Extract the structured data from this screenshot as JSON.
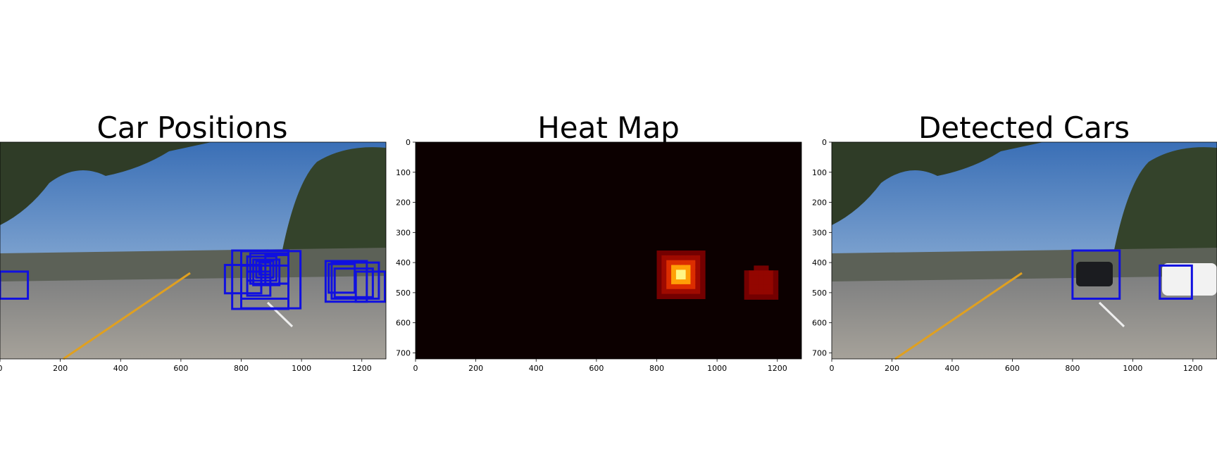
{
  "figure": {
    "panels": [
      {
        "id": "car-positions",
        "title": "Car Positions"
      },
      {
        "id": "heat-map",
        "title": "Heat Map"
      },
      {
        "id": "detected-cars",
        "title": "Detected Cars"
      }
    ]
  },
  "colors": {
    "box": "#1010e0",
    "heat_background": "#0c0000",
    "sky_top": "#3f73b8",
    "sky_bottom": "#9fc0df",
    "road": "#8d8d8b",
    "trees": "#31402a",
    "lane_line": "#e0a020"
  },
  "chart_data": [
    {
      "type": "image",
      "title": "Car Positions",
      "xlim": [
        0,
        1280
      ],
      "ylim": [
        720,
        0
      ],
      "xticks": [
        0,
        200,
        400,
        600,
        800,
        1000,
        1200
      ],
      "yticks": [],
      "boxes": [
        [
          0,
          430,
          96,
          520
        ],
        [
          746,
          408,
          870,
          502
        ],
        [
          770,
          360,
          960,
          554
        ],
        [
          800,
          362,
          1000,
          552
        ],
        [
          820,
          380,
          920,
          460
        ],
        [
          830,
          370,
          960,
          470
        ],
        [
          840,
          390,
          930,
          475
        ],
        [
          850,
          395,
          910,
          450
        ],
        [
          860,
          400,
          900,
          440
        ],
        [
          800,
          410,
          960,
          520
        ],
        [
          820,
          430,
          900,
          510
        ],
        [
          880,
          375,
          960,
          470
        ],
        [
          1080,
          395,
          1220,
          530
        ],
        [
          1090,
          405,
          1180,
          500
        ],
        [
          1100,
          400,
          1260,
          520
        ],
        [
          1110,
          420,
          1240,
          515
        ],
        [
          1180,
          430,
          1280,
          530
        ]
      ]
    },
    {
      "type": "heatmap",
      "title": "Heat Map",
      "xlim": [
        0,
        1280
      ],
      "ylim": [
        720,
        0
      ],
      "xticks": [
        0,
        200,
        400,
        600,
        800,
        1000,
        1200
      ],
      "yticks": [
        0,
        100,
        200,
        300,
        400,
        500,
        600,
        700
      ],
      "tick_labels_x": [
        "0",
        "200",
        "400",
        "600",
        "800",
        "1000",
        "1200"
      ],
      "tick_labels_y": [
        "0",
        "100",
        "200",
        "300",
        "400",
        "500",
        "600",
        "700"
      ],
      "hot_regions": [
        {
          "x_range": [
            800,
            960
          ],
          "y_range": [
            360,
            520
          ],
          "peak": 10
        },
        {
          "x_range": [
            1090,
            1200
          ],
          "y_range": [
            410,
            520
          ],
          "peak": 3
        }
      ]
    },
    {
      "type": "image",
      "title": "Detected Cars",
      "xlim": [
        0,
        1280
      ],
      "ylim": [
        720,
        0
      ],
      "xticks": [
        0,
        200,
        400,
        600,
        800,
        1000,
        1200
      ],
      "yticks": [
        0,
        100,
        200,
        300,
        400,
        500,
        600,
        700
      ],
      "tick_labels_x": [
        "0",
        "200",
        "400",
        "600",
        "800",
        "1000",
        "1200"
      ],
      "tick_labels_y": [
        "0",
        "100",
        "200",
        "300",
        "400",
        "500",
        "600",
        "700"
      ],
      "boxes": [
        [
          800,
          360,
          960,
          520
        ],
        [
          1090,
          410,
          1200,
          520
        ]
      ]
    }
  ]
}
